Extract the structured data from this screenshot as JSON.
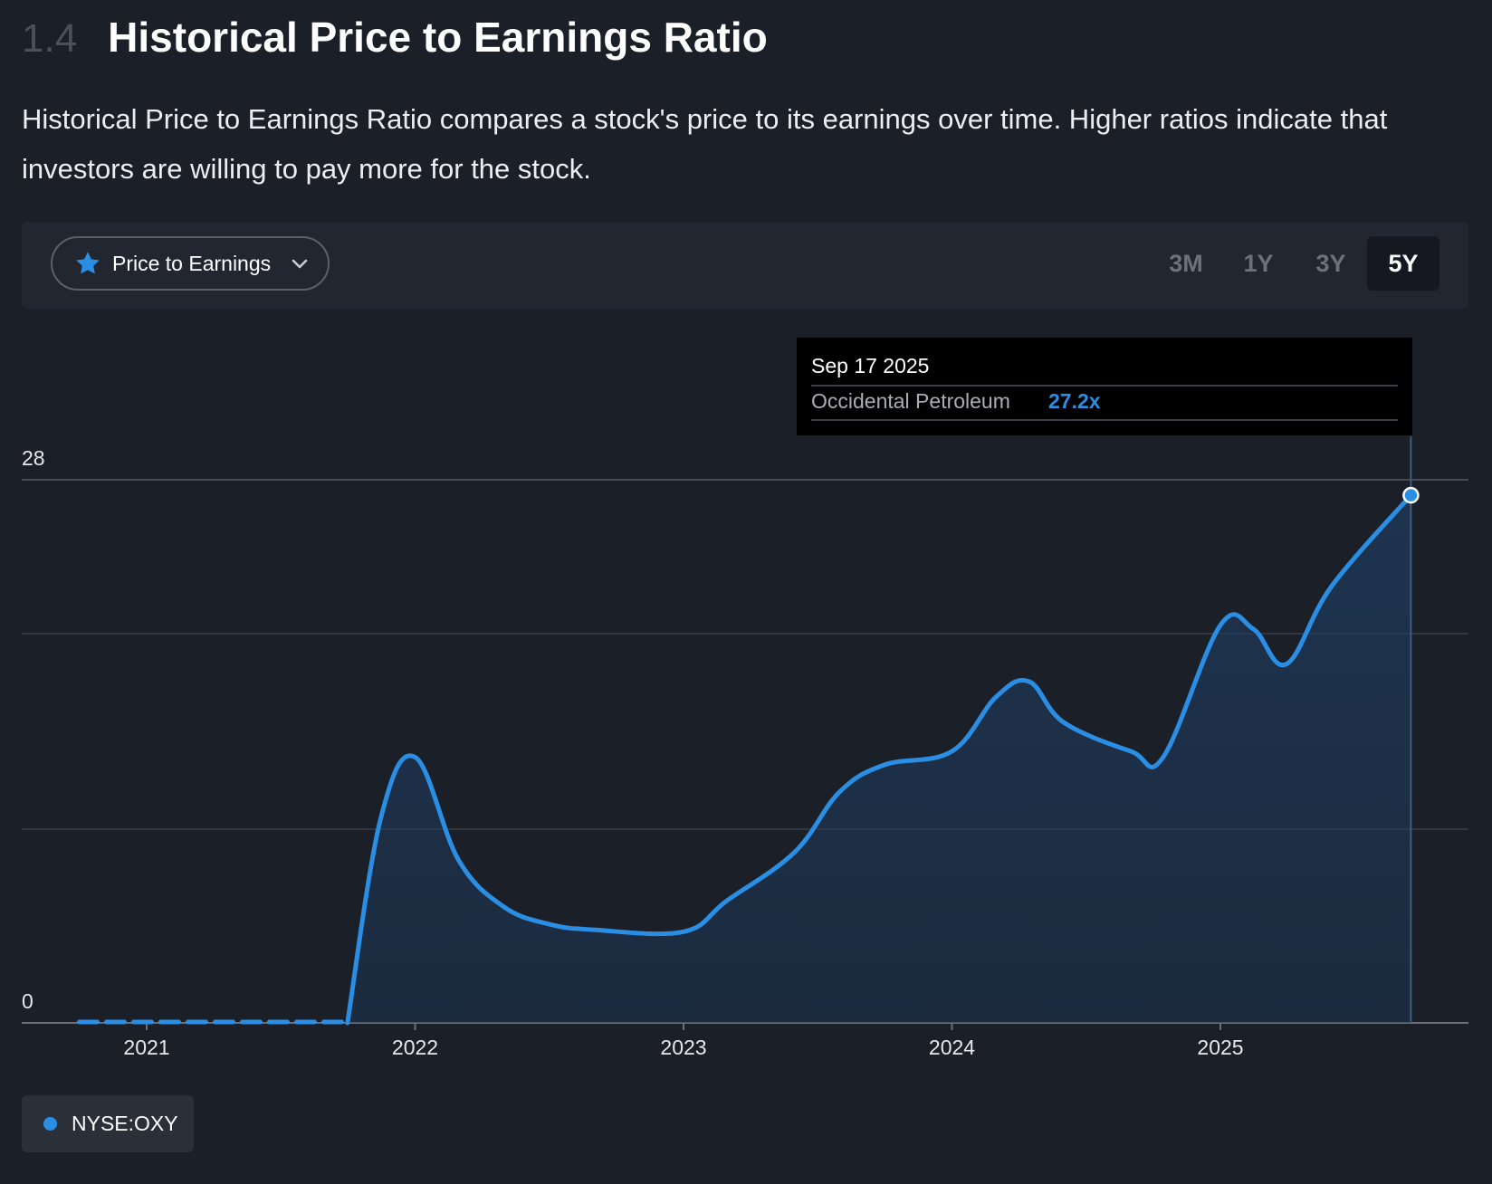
{
  "header": {
    "section_number": "1.4",
    "title": "Historical Price to Earnings Ratio"
  },
  "description": "Historical Price to Earnings Ratio compares a stock's price to its earnings over time. Higher ratios indicate that investors are willing to pay more for the stock.",
  "toolbar": {
    "metric_dropdown": {
      "label": "Price to Earnings",
      "icon": "star-icon",
      "chevron": "chevron-down-icon"
    },
    "periods": [
      {
        "label": "3M",
        "active": false
      },
      {
        "label": "1Y",
        "active": false
      },
      {
        "label": "3Y",
        "active": false
      },
      {
        "label": "5Y",
        "active": true
      }
    ]
  },
  "tooltip": {
    "date": "Sep 17 2025",
    "series_name": "Occidental Petroleum",
    "value": "27.2x"
  },
  "legend": {
    "label": "NYSE:OXY",
    "color": "#2a8fe4"
  },
  "chart_data": {
    "type": "area",
    "title": "",
    "xlabel": "",
    "ylabel": "",
    "ylim": [
      0,
      28
    ],
    "y_tick_labels": [
      "28",
      "0"
    ],
    "x_tick_labels": [
      "2021",
      "2022",
      "2023",
      "2024",
      "2025"
    ],
    "grid": true,
    "colors": {
      "line": "#2a8fe4",
      "fill": "#1e3a5c",
      "background": "#1b1f27",
      "grid": "#3a3e46"
    },
    "series": [
      {
        "name": "NYSE:OXY",
        "missing_segment": {
          "from": "2020-10-01",
          "to": "2021-10-01",
          "value": 0,
          "style": "dashed"
        },
        "points": [
          [
            "2021-10-01",
            0.0
          ],
          [
            "2021-11-15",
            10.5
          ],
          [
            "2022-01-01",
            13.7
          ],
          [
            "2022-03-01",
            8.4
          ],
          [
            "2022-05-01",
            6.0
          ],
          [
            "2022-07-01",
            5.1
          ],
          [
            "2022-09-01",
            4.8
          ],
          [
            "2023-01-01",
            4.7
          ],
          [
            "2023-03-01",
            6.3
          ],
          [
            "2023-06-01",
            8.8
          ],
          [
            "2023-08-01",
            11.9
          ],
          [
            "2023-10-01",
            13.3
          ],
          [
            "2024-01-01",
            14.0
          ],
          [
            "2024-03-01",
            16.8
          ],
          [
            "2024-04-15",
            17.6
          ],
          [
            "2024-06-01",
            15.5
          ],
          [
            "2024-09-01",
            14.0
          ],
          [
            "2024-10-15",
            13.7
          ],
          [
            "2025-01-01",
            20.5
          ],
          [
            "2025-02-15",
            20.3
          ],
          [
            "2025-04-01",
            18.5
          ],
          [
            "2025-06-01",
            22.5
          ],
          [
            "2025-09-17",
            27.2
          ]
        ]
      }
    ],
    "highlight_point": [
      "2025-09-17",
      27.2
    ]
  }
}
